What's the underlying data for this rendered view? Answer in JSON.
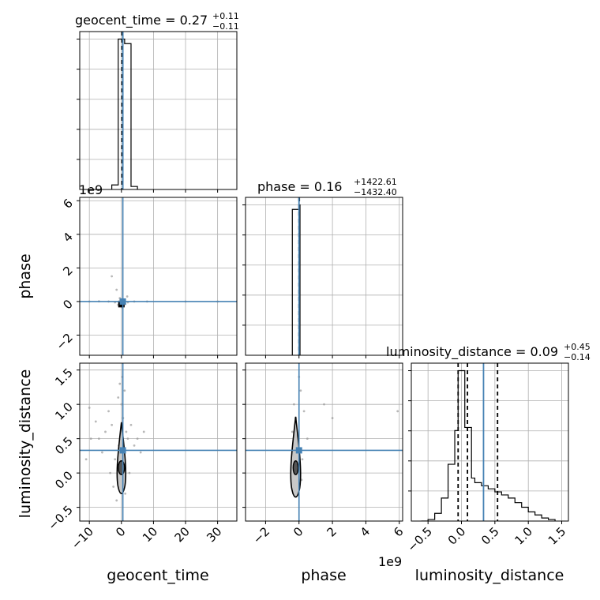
{
  "figure": {
    "offset_x_label": "1e9",
    "offset_y_label": "1e9"
  },
  "chart_data": [
    {
      "type": "histogram",
      "panel": "geocent_time-marginal",
      "title": {
        "base": "geocent_time = 0.27",
        "upper": "+0.11",
        "lower": "−0.11"
      },
      "xlim": [
        -13,
        36
      ],
      "bin_edges": [
        -3,
        -1,
        1,
        3,
        5
      ],
      "counts": [
        0.03,
        1.0,
        0.97,
        0.02
      ],
      "quantile_lines": [
        0.16,
        0.27,
        0.38
      ],
      "truth": 0.45,
      "grid": true
    },
    {
      "type": "histogram",
      "panel": "phase-marginal",
      "title": {
        "base": "phase = 0.16",
        "upper": "+1422.61",
        "lower": "−1432.40"
      },
      "xlim": [
        -3.2,
        6.2
      ],
      "offset": "1e9",
      "bin_edges": [
        -0.4,
        0.0,
        0.06
      ],
      "counts": [
        0.97,
        1.0
      ],
      "quantile_lines": [
        0.0,
        0.01,
        0.02
      ],
      "truth": 0.0,
      "grid": true
    },
    {
      "type": "histogram",
      "panel": "luminosity_distance-marginal",
      "title": {
        "base": "luminosity_distance = 0.09",
        "upper": "+0.45",
        "lower": "−0.14"
      },
      "xlim": [
        -0.75,
        1.6
      ],
      "bin_edges": [
        -0.6,
        -0.5,
        -0.4,
        -0.3,
        -0.2,
        -0.1,
        -0.05,
        0.05,
        0.15,
        0.2,
        0.3,
        0.4,
        0.5,
        0.6,
        0.7,
        0.8,
        0.9,
        1.0,
        1.1,
        1.2,
        1.3,
        1.4
      ],
      "counts": [
        0.0,
        0.01,
        0.05,
        0.15,
        0.37,
        0.59,
        0.98,
        0.61,
        0.28,
        0.25,
        0.23,
        0.21,
        0.19,
        0.17,
        0.15,
        0.12,
        0.09,
        0.06,
        0.04,
        0.02,
        0.01
      ],
      "quantile_lines": [
        -0.05,
        0.09,
        0.54
      ],
      "truth": 0.33,
      "grid": true
    },
    {
      "type": "scatter",
      "panel": "geocent_time-vs-phase",
      "xlim": [
        -13,
        36
      ],
      "ylim": [
        -3.2,
        6.2
      ],
      "yoffset": "1e9",
      "truth": {
        "x": 0.45,
        "y": 0.0
      },
      "points": [
        [
          -10,
          0.0
        ],
        [
          -7,
          0.01
        ],
        [
          -4,
          0.0
        ],
        [
          -2,
          -0.05
        ],
        [
          -1,
          -0.2
        ],
        [
          0.3,
          -0.35
        ],
        [
          0.7,
          0.05
        ],
        [
          1,
          0.0
        ],
        [
          2,
          -0.05
        ],
        [
          4,
          0.0
        ],
        [
          8,
          0.0
        ],
        [
          20,
          0.0
        ],
        [
          30,
          0.0
        ],
        [
          -0.5,
          0.2
        ],
        [
          -1.5,
          0.7
        ],
        [
          1.8,
          0.3
        ],
        [
          -3,
          1.5
        ],
        [
          0.2,
          -0.1
        ],
        [
          -0.3,
          0.1
        ],
        [
          1.2,
          -0.15
        ]
      ],
      "dense_core": {
        "x": [
          -1,
          1
        ],
        "y": [
          -0.35,
          0.05
        ]
      },
      "grid": true
    },
    {
      "type": "scatter",
      "panel": "geocent_time-vs-luminosity_distance",
      "xlim": [
        -13,
        36
      ],
      "ylim": [
        -0.7,
        1.6
      ],
      "truth": {
        "x": 0.45,
        "y": 0.33
      },
      "points": [
        [
          -11,
          0.2
        ],
        [
          -10,
          0.95
        ],
        [
          -9.5,
          0.5
        ],
        [
          -8,
          0.75
        ],
        [
          -7,
          0.5
        ],
        [
          -6,
          0.3
        ],
        [
          -5,
          0.6
        ],
        [
          -4,
          0.9
        ],
        [
          -3,
          0.7
        ],
        [
          -2,
          0.2
        ],
        [
          -1,
          1.1
        ],
        [
          -0.5,
          1.3
        ],
        [
          0,
          1.0
        ],
        [
          0.5,
          0.8
        ],
        [
          1,
          1.2
        ],
        [
          1.5,
          0.6
        ],
        [
          2,
          0.5
        ],
        [
          3,
          0.7
        ],
        [
          4,
          0.4
        ],
        [
          5,
          0.5
        ],
        [
          6,
          0.3
        ],
        [
          7,
          0.6
        ],
        [
          -2.5,
          -0.2
        ],
        [
          -1.5,
          -0.4
        ],
        [
          1.2,
          -0.3
        ],
        [
          2.5,
          0.0
        ],
        [
          -3.5,
          0.0
        ],
        [
          0.3,
          1.4
        ],
        [
          -0.8,
          0.4
        ],
        [
          0.8,
          0.2
        ]
      ],
      "contours": {
        "center": {
          "x": 0.0,
          "y": 0.1
        },
        "inner": {
          "rx": 1.0,
          "ry": 0.1
        },
        "outer": {
          "rx": 1.6,
          "ry": 0.4
        }
      },
      "grid": true
    },
    {
      "type": "scatter",
      "panel": "phase-vs-luminosity_distance",
      "xlim": [
        -3.2,
        6.2
      ],
      "ylim": [
        -0.7,
        1.6
      ],
      "xoffset": "1e9",
      "truth": {
        "x": 0.0,
        "y": 0.33
      },
      "points": [
        [
          -0.3,
          1.0
        ],
        [
          -0.2,
          0.8
        ],
        [
          0.1,
          1.2
        ],
        [
          0.0,
          1.4
        ],
        [
          -0.4,
          0.6
        ],
        [
          0.3,
          0.9
        ],
        [
          0.5,
          0.5
        ],
        [
          1.5,
          1.0
        ],
        [
          2,
          0.8
        ],
        [
          5.9,
          0.9
        ],
        [
          -0.1,
          0.3
        ],
        [
          0.2,
          0.2
        ],
        [
          -0.35,
          -0.3
        ],
        [
          0.15,
          -0.1
        ]
      ],
      "contours": {
        "center": {
          "x": -0.2,
          "y": 0.1
        },
        "inner": {
          "rx": 0.15,
          "ry": 0.1
        },
        "outer": {
          "rx": 0.35,
          "ry": 0.45
        }
      },
      "grid": true
    }
  ],
  "axes": {
    "geocent_time": {
      "label": "geocent_time",
      "ticks": [
        -10,
        0,
        10,
        20,
        30
      ],
      "tick_labels": [
        "−10",
        "0",
        "10",
        "20",
        "30"
      ]
    },
    "phase_x": {
      "label": "phase",
      "ticks": [
        -2,
        0,
        2,
        4,
        6
      ],
      "tick_labels": [
        "−2",
        "0",
        "2",
        "4",
        "6"
      ]
    },
    "phase_y": {
      "label": "phase",
      "ticks": [
        -2,
        0,
        2,
        4,
        6
      ],
      "tick_labels": [
        "−2",
        "0",
        "2",
        "4",
        "6"
      ]
    },
    "luminosity_distance_x": {
      "label": "luminosity_distance",
      "ticks": [
        -0.5,
        0.0,
        0.5,
        1.0,
        1.5
      ],
      "tick_labels": [
        "−0.5",
        "0.0",
        "0.5",
        "1.0",
        "1.5"
      ]
    },
    "luminosity_distance_y": {
      "label": "luminosity_distance",
      "ticks": [
        -0.5,
        0.0,
        0.5,
        1.0,
        1.5
      ],
      "tick_labels": [
        "−0.5",
        "0.0",
        "0.5",
        "1.0",
        "1.5"
      ]
    }
  },
  "colors": {
    "truth": "#4682b4",
    "hist": "#000000",
    "grid": "#b0b0b0",
    "points": "#9a9a9a",
    "fill_outer": "#c8c8c8",
    "fill_inner": "#555555"
  }
}
